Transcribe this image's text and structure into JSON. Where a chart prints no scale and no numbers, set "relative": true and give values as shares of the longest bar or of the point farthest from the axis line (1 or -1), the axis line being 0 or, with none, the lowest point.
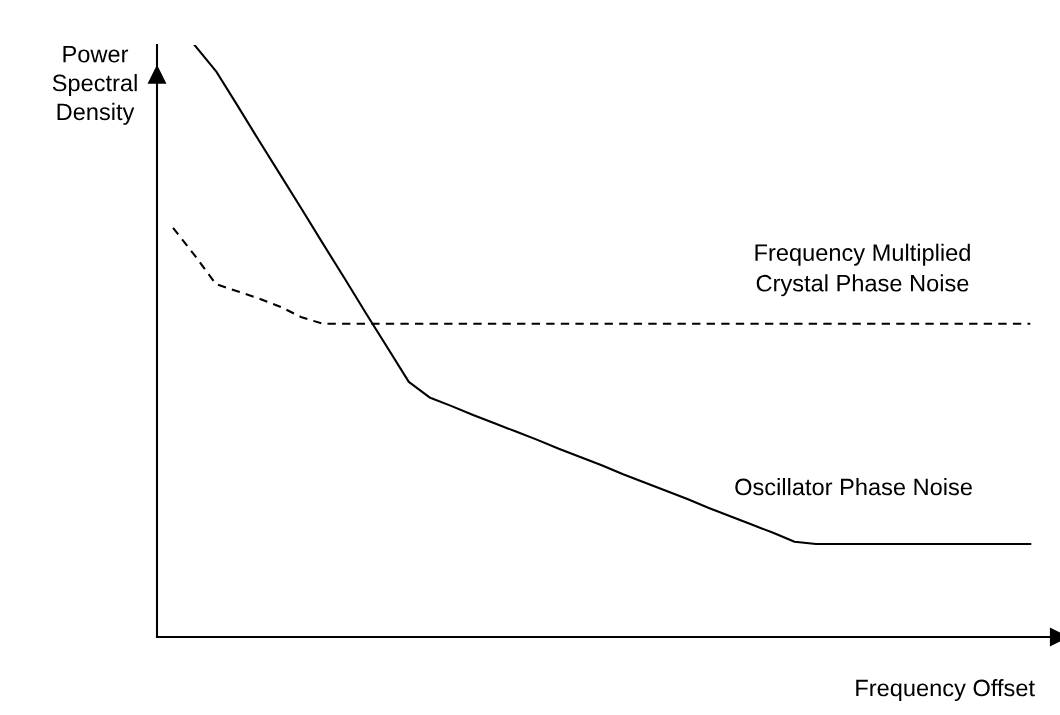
{
  "chart_data": {
    "type": "line",
    "relative": true,
    "xlabel": "Frequency Offset",
    "ylabel": "Power\nSpectral\nDensity",
    "marker": "none",
    "categories": [
      null,
      null,
      null,
      null,
      null,
      null,
      null,
      null,
      null,
      null,
      null,
      null,
      null,
      null,
      null,
      null,
      null,
      null,
      null,
      null,
      null,
      null,
      null,
      null,
      null,
      null,
      null,
      null,
      null,
      null,
      null,
      null,
      null,
      null,
      null,
      null,
      null,
      null,
      null,
      null,
      null
    ],
    "series": [
      {
        "name": "Oscillator Phase Noise",
        "color": "#000000",
        "line_style": "solid",
        "values": [
          null,
          1,
          0.956,
          0.898,
          0.839,
          0.781,
          0.723,
          0.664,
          0.606,
          0.547,
          0.489,
          0.431,
          0.404,
          0.39,
          0.375,
          0.361,
          0.347,
          0.333,
          0.318,
          0.304,
          0.29,
          0.275,
          0.261,
          0.247,
          0.233,
          0.218,
          0.204,
          0.19,
          0.176,
          0.161,
          0.157,
          0.157,
          0.157,
          0.157,
          0.157,
          0.157,
          0.157,
          0.157,
          0.157,
          0.157,
          0.157
        ]
      },
      {
        "name": "Frequency Multiplied\nCrystal Phase Noise",
        "color": "#000000",
        "line_style": "dashed",
        "values": [
          0.691,
          0.645,
          0.596,
          0.584,
          0.572,
          0.558,
          0.54,
          0.529,
          0.529,
          0.529,
          0.529,
          0.529,
          0.529,
          0.529,
          0.529,
          0.529,
          0.529,
          0.529,
          0.529,
          0.529,
          0.529,
          0.529,
          0.529,
          0.529,
          0.529,
          0.529,
          0.529,
          0.529,
          0.529,
          0.529,
          0.529,
          0.529,
          0.529,
          0.529,
          0.529,
          0.529,
          0.529,
          0.529,
          0.529,
          0.529,
          0.529
        ]
      }
    ]
  }
}
